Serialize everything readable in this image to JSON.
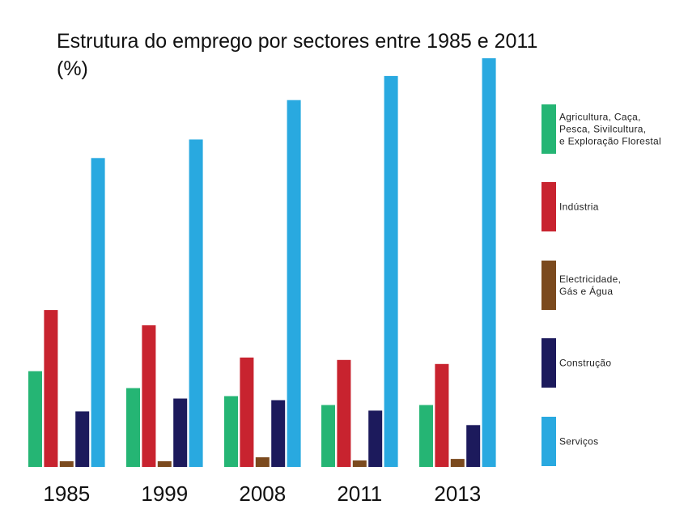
{
  "chart_data": {
    "type": "bar",
    "title": "Estrutura do emprego por sectores entre 1985 e 2011 (%)",
    "categories": [
      "1985",
      "1999",
      "2008",
      "2011",
      "2013"
    ],
    "series": [
      {
        "name": "Agricultura, Caça, Pesca, Sivilcultura, e Exploração Florestal",
        "label_lines": [
          "Agricultura, Caça,",
          "Pesca, Sivilcultura,",
          "e Exploração Florestal"
        ],
        "color": "#25b574",
        "values": [
          11.9,
          9.8,
          8.8,
          7.7,
          7.7
        ]
      },
      {
        "name": "Indústria",
        "label_lines": [
          "Indústria"
        ],
        "color": "#c8232f",
        "values": [
          19.5,
          17.6,
          13.6,
          13.3,
          12.8
        ]
      },
      {
        "name": "Electricidade, Gás e Água",
        "label_lines": [
          "Electricidade,",
          "Gás e Água"
        ],
        "color": "#7b4a1e",
        "values": [
          0.7,
          0.7,
          1.2,
          0.8,
          1.0
        ]
      },
      {
        "name": "Construção",
        "label_lines": [
          "Construção"
        ],
        "color": "#1c1a5c",
        "values": [
          6.9,
          8.5,
          8.3,
          7.0,
          5.2
        ]
      },
      {
        "name": "Serviços",
        "label_lines": [
          "Serviços"
        ],
        "color": "#29a9e0",
        "values": [
          38.4,
          40.7,
          45.6,
          48.6,
          50.8
        ]
      }
    ],
    "xlabel": "",
    "ylabel": "",
    "ylim": [
      0,
      51
    ],
    "grid": false,
    "legend_position": "right"
  }
}
